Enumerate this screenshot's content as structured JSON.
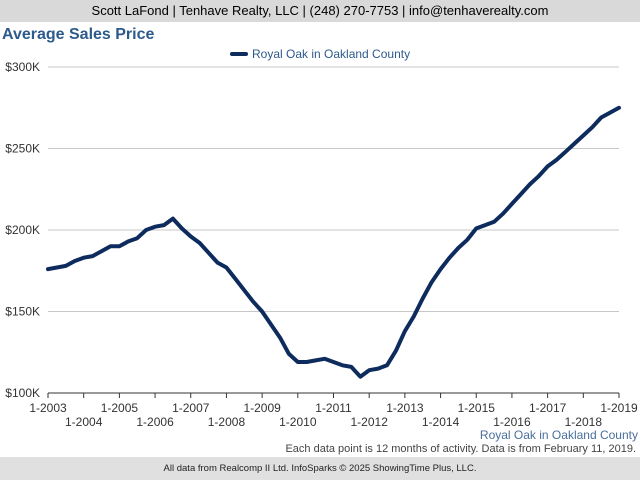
{
  "header": {
    "contact": "Scott LaFond | Tenhave Realty, LLC | (248) 270-7753 | info@tenhaverealty.com"
  },
  "chart_title": "Average Sales Price",
  "footer": {
    "region": "Royal Oak in Oakland County",
    "note": "Each data point is 12 months of activity. Data is from February 11, 2019.",
    "credit": "All data from Realcomp II Ltd. InfoSparks © 2025 ShowingTime Plus, LLC."
  },
  "colors": {
    "series": "#0d2b5c",
    "title": "#2d5a8c",
    "grid": "#c8c8c8"
  },
  "chart_data": {
    "type": "line",
    "title": "Average Sales Price",
    "legend_placement": "top-center",
    "grid": true,
    "ylim": [
      100000,
      300000
    ],
    "y_ticks": [
      {
        "value": 100000,
        "label": "$100K"
      },
      {
        "value": 150000,
        "label": "$150K"
      },
      {
        "value": 200000,
        "label": "$200K"
      },
      {
        "value": 250000,
        "label": "$250K"
      },
      {
        "value": 300000,
        "label": "$300K"
      }
    ],
    "xlim": [
      2003,
      2019
    ],
    "x_ticks_upper": [
      {
        "value": 2003,
        "label": "1-2003"
      },
      {
        "value": 2005,
        "label": "1-2005"
      },
      {
        "value": 2007,
        "label": "1-2007"
      },
      {
        "value": 2009,
        "label": "1-2009"
      },
      {
        "value": 2011,
        "label": "1-2011"
      },
      {
        "value": 2013,
        "label": "1-2013"
      },
      {
        "value": 2015,
        "label": "1-2015"
      },
      {
        "value": 2017,
        "label": "1-2017"
      },
      {
        "value": 2019,
        "label": "1-2019"
      }
    ],
    "x_ticks_lower": [
      {
        "value": 2004,
        "label": "1-2004"
      },
      {
        "value": 2006,
        "label": "1-2006"
      },
      {
        "value": 2008,
        "label": "1-2008"
      },
      {
        "value": 2010,
        "label": "1-2010"
      },
      {
        "value": 2012,
        "label": "1-2012"
      },
      {
        "value": 2014,
        "label": "1-2014"
      },
      {
        "value": 2016,
        "label": "1-2016"
      },
      {
        "value": 2018,
        "label": "1-2018"
      }
    ],
    "series": [
      {
        "name": "Royal Oak in Oakland County",
        "points": [
          [
            2003.0,
            176000
          ],
          [
            2003.25,
            177000
          ],
          [
            2003.5,
            178000
          ],
          [
            2003.75,
            181000
          ],
          [
            2004.0,
            183000
          ],
          [
            2004.25,
            184000
          ],
          [
            2004.5,
            187000
          ],
          [
            2004.75,
            190000
          ],
          [
            2005.0,
            190000
          ],
          [
            2005.25,
            193000
          ],
          [
            2005.5,
            195000
          ],
          [
            2005.75,
            200000
          ],
          [
            2006.0,
            202000
          ],
          [
            2006.25,
            203000
          ],
          [
            2006.5,
            207000
          ],
          [
            2006.75,
            201000
          ],
          [
            2007.0,
            196000
          ],
          [
            2007.25,
            192000
          ],
          [
            2007.5,
            186000
          ],
          [
            2007.75,
            180000
          ],
          [
            2008.0,
            177000
          ],
          [
            2008.25,
            170000
          ],
          [
            2008.5,
            163000
          ],
          [
            2008.75,
            156000
          ],
          [
            2009.0,
            150000
          ],
          [
            2009.25,
            142000
          ],
          [
            2009.5,
            134000
          ],
          [
            2009.75,
            124000
          ],
          [
            2010.0,
            119000
          ],
          [
            2010.25,
            119000
          ],
          [
            2010.5,
            120000
          ],
          [
            2010.75,
            121000
          ],
          [
            2011.0,
            119000
          ],
          [
            2011.25,
            117000
          ],
          [
            2011.5,
            116000
          ],
          [
            2011.75,
            110000
          ],
          [
            2012.0,
            114000
          ],
          [
            2012.25,
            115000
          ],
          [
            2012.5,
            117000
          ],
          [
            2012.75,
            126000
          ],
          [
            2013.0,
            138000
          ],
          [
            2013.25,
            147000
          ],
          [
            2013.5,
            158000
          ],
          [
            2013.75,
            168000
          ],
          [
            2014.0,
            176000
          ],
          [
            2014.25,
            183000
          ],
          [
            2014.5,
            189000
          ],
          [
            2014.75,
            194000
          ],
          [
            2015.0,
            201000
          ],
          [
            2015.25,
            203000
          ],
          [
            2015.5,
            205000
          ],
          [
            2015.75,
            210000
          ],
          [
            2016.0,
            216000
          ],
          [
            2016.25,
            222000
          ],
          [
            2016.5,
            228000
          ],
          [
            2016.75,
            233000
          ],
          [
            2017.0,
            239000
          ],
          [
            2017.25,
            243000
          ],
          [
            2017.5,
            248000
          ],
          [
            2017.75,
            253000
          ],
          [
            2018.0,
            258000
          ],
          [
            2018.25,
            263000
          ],
          [
            2018.5,
            269000
          ],
          [
            2018.75,
            272000
          ],
          [
            2019.0,
            275000
          ]
        ]
      }
    ]
  }
}
